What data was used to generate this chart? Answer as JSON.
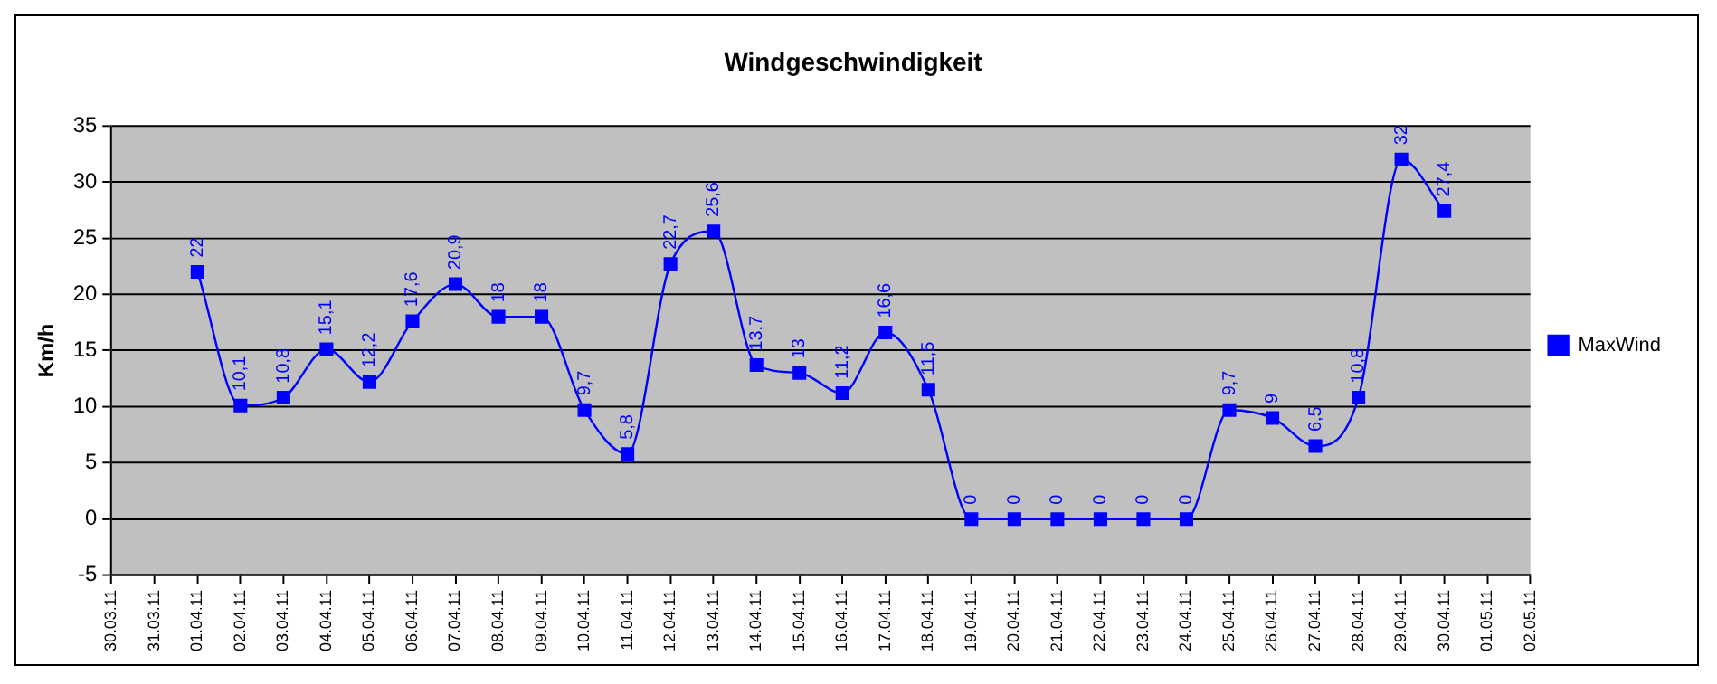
{
  "chart_data": {
    "type": "line",
    "title": "Windgeschwindigkeit",
    "ylabel": "Km/h",
    "categories": [
      "30.03.11",
      "31.03.11",
      "01.04.11",
      "02.04.11",
      "03.04.11",
      "04.04.11",
      "05.04.11",
      "06.04.11",
      "07.04.11",
      "08.04.11",
      "09.04.11",
      "10.04.11",
      "11.04.11",
      "12.04.11",
      "13.04.11",
      "14.04.11",
      "15.04.11",
      "16.04.11",
      "17.04.11",
      "18.04.11",
      "19.04.11",
      "20.04.11",
      "21.04.11",
      "22.04.11",
      "23.04.11",
      "24.04.11",
      "25.04.11",
      "26.04.11",
      "27.04.11",
      "28.04.11",
      "29.04.11",
      "30.04.11",
      "01.05.11",
      "02.05.11"
    ],
    "series": [
      {
        "name": "MaxWind",
        "color": "#0000ff",
        "values": [
          null,
          null,
          22,
          10.1,
          10.8,
          15.1,
          12.2,
          17.6,
          20.9,
          18,
          18,
          9.7,
          5.8,
          22.7,
          25.6,
          13.7,
          13,
          11.2,
          16.6,
          11.5,
          0,
          0,
          0,
          0,
          0,
          0,
          9.7,
          9,
          6.5,
          10.8,
          32,
          27.4,
          null,
          null
        ],
        "value_labels": [
          null,
          null,
          "22",
          "10,1",
          "10,8",
          "15,1",
          "12,2",
          "17,6",
          "20,9",
          "18",
          "18",
          "9,7",
          "5,8",
          "22,7",
          "25,6",
          "13,7",
          "13",
          "11,2",
          "16,6",
          "11,5",
          "0",
          "0",
          "0",
          "0",
          "0",
          "0",
          "9,7",
          "9",
          "6,5",
          "10,8",
          "32",
          "27,4",
          null,
          null
        ]
      }
    ],
    "ylim": [
      -5,
      35
    ],
    "yticks": [
      -5,
      0,
      5,
      10,
      15,
      20,
      25,
      30,
      35
    ],
    "grid": "y",
    "legend": "right",
    "marker": "square",
    "line_style": "solid"
  }
}
